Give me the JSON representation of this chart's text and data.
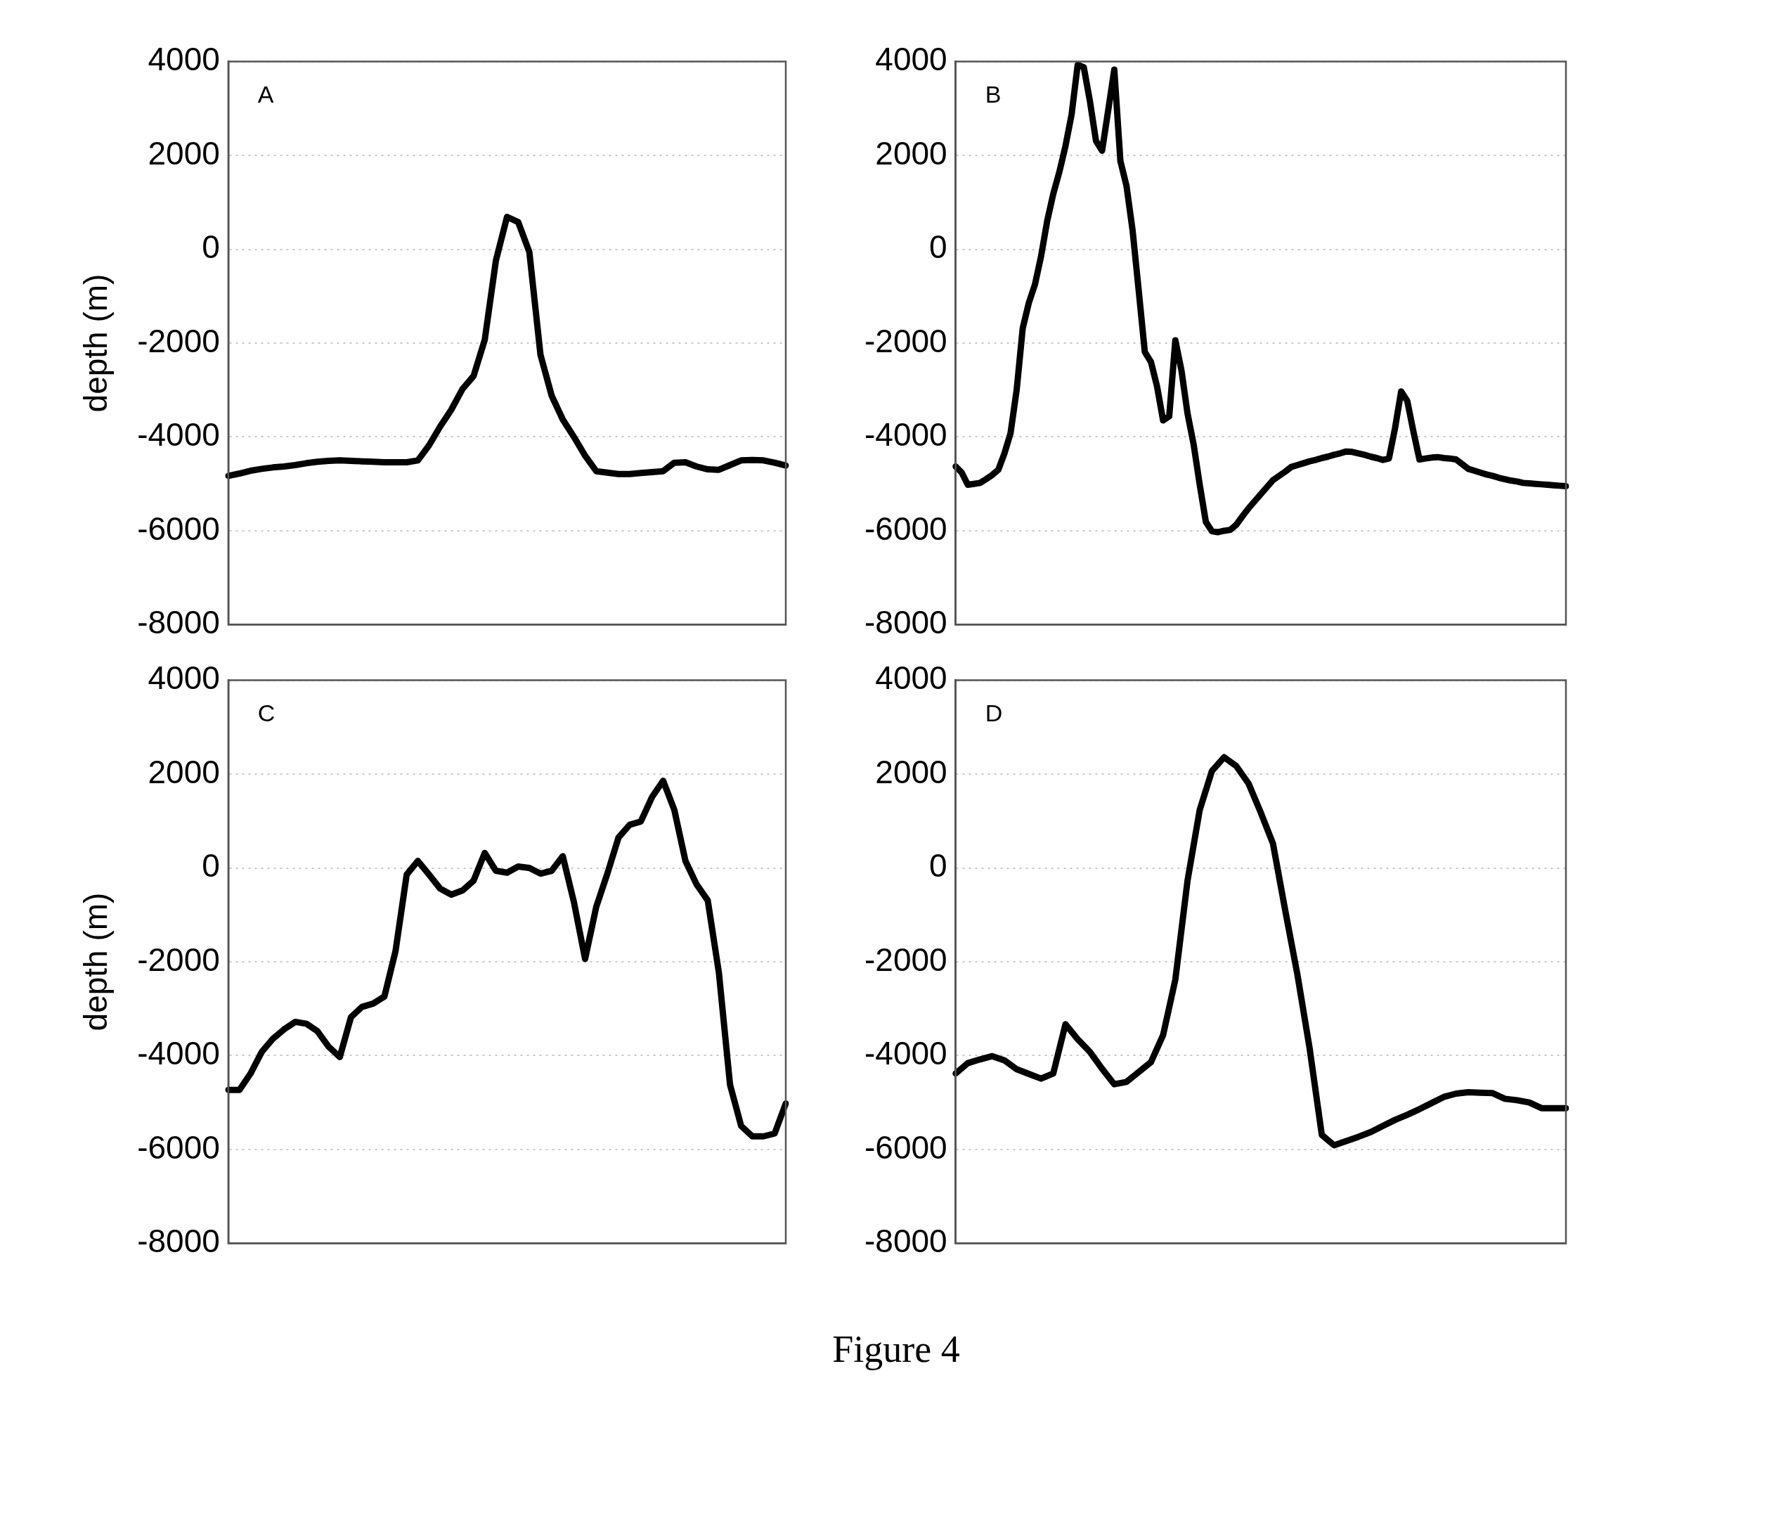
{
  "chart_data": [
    {
      "type": "line",
      "title": "A",
      "ylabel": "depth (m)",
      "categories": [
        null,
        null,
        null,
        null,
        null,
        null,
        null,
        null,
        null,
        null,
        null,
        null,
        null,
        null,
        null,
        null,
        null,
        null,
        null,
        null,
        null,
        null,
        null,
        null,
        null,
        null,
        null,
        null,
        null,
        null,
        null,
        null,
        null,
        null,
        null,
        null,
        null,
        null,
        null,
        null,
        null,
        null,
        null,
        null,
        null,
        null,
        null,
        null,
        null,
        null,
        null
      ],
      "ylim": [
        -8000,
        4000
      ],
      "yticks": [
        -8000,
        -6000,
        -4000,
        -2000,
        0,
        2000,
        4000
      ],
      "grid": "y",
      "tick_labels": "y",
      "marker": "none",
      "line_style": "solid",
      "series": [
        {
          "color": "#000000",
          "values": [
            -4830,
            -4780,
            -4720,
            -4680,
            -4650,
            -4630,
            -4600,
            -4560,
            -4530,
            -4510,
            -4500,
            -4510,
            -4520,
            -4530,
            -4540,
            -4540,
            -4540,
            -4500,
            -4180,
            -3780,
            -3420,
            -2980,
            -2700,
            -1930,
            -240,
            690,
            580,
            -60,
            -2250,
            -3120,
            -3630,
            -4000,
            -4400,
            -4730,
            -4760,
            -4790,
            -4790,
            -4770,
            -4750,
            -4730,
            -4550,
            -4540,
            -4630,
            -4690,
            -4700,
            -4600,
            -4500,
            -4490,
            -4500,
            -4550,
            -4610
          ]
        }
      ]
    },
    {
      "type": "line",
      "title": "B",
      "categories": [
        null,
        null,
        null,
        null,
        null,
        null,
        null,
        null,
        null,
        null,
        null,
        null,
        null,
        null,
        null,
        null,
        null,
        null,
        null,
        null,
        null,
        null,
        null,
        null,
        null,
        null,
        null,
        null,
        null,
        null,
        null,
        null,
        null,
        null,
        null,
        null,
        null,
        null,
        null,
        null,
        null,
        null,
        null,
        null,
        null,
        null,
        null,
        null,
        null,
        null,
        null,
        null,
        null,
        null,
        null,
        null,
        null,
        null,
        null,
        null,
        null,
        null,
        null,
        null,
        null,
        null,
        null,
        null,
        null,
        null,
        null,
        null,
        null,
        null,
        null,
        null,
        null,
        null,
        null,
        null,
        null,
        null,
        null,
        null,
        null,
        null,
        null,
        null,
        null,
        null,
        null,
        null,
        null,
        null,
        null,
        null,
        null,
        null,
        null,
        null,
        null
      ],
      "ylim": [
        -8000,
        4000
      ],
      "yticks": [
        -8000,
        -6000,
        -4000,
        -2000,
        0,
        2000,
        4000
      ],
      "grid": "y",
      "tick_labels": "y",
      "marker": "none",
      "line_style": "solid",
      "series": [
        {
          "color": "#000000",
          "values": [
            -4630,
            -4760,
            -5020,
            -5000,
            -4980,
            -4900,
            -4810,
            -4700,
            -4350,
            -3920,
            -3000,
            -1680,
            -1140,
            -750,
            -150,
            600,
            1180,
            1650,
            2200,
            2870,
            3930,
            3880,
            3160,
            2310,
            2100,
            2960,
            3830,
            1880,
            1350,
            400,
            -880,
            -2190,
            -2400,
            -2920,
            -3650,
            -3560,
            -1940,
            -2580,
            -3500,
            -4160,
            -5020,
            -5810,
            -6010,
            -6030,
            -6000,
            -5980,
            -5870,
            -5690,
            -5520,
            -5370,
            -5220,
            -5070,
            -4920,
            -4830,
            -4740,
            -4640,
            -4600,
            -4560,
            -4520,
            -4490,
            -4450,
            -4420,
            -4380,
            -4350,
            -4310,
            -4320,
            -4350,
            -4380,
            -4420,
            -4450,
            -4490,
            -4460,
            -3810,
            -3030,
            -3230,
            -3880,
            -4480,
            -4460,
            -4440,
            -4430,
            -4450,
            -4460,
            -4480,
            -4580,
            -4680,
            -4720,
            -4760,
            -4800,
            -4830,
            -4870,
            -4900,
            -4930,
            -4950,
            -4980,
            -4990,
            -5000,
            -5010,
            -5020,
            -5030,
            -5040,
            -5050
          ]
        }
      ]
    },
    {
      "type": "line",
      "title": "C",
      "ylabel": "depth (m)",
      "categories": [
        null,
        null,
        null,
        null,
        null,
        null,
        null,
        null,
        null,
        null,
        null,
        null,
        null,
        null,
        null,
        null,
        null,
        null,
        null,
        null,
        null,
        null,
        null,
        null,
        null,
        null,
        null,
        null,
        null,
        null,
        null,
        null,
        null,
        null,
        null,
        null,
        null,
        null,
        null,
        null,
        null,
        null,
        null,
        null,
        null,
        null,
        null,
        null,
        null,
        null,
        null
      ],
      "ylim": [
        -8000,
        4000
      ],
      "yticks": [
        -8000,
        -6000,
        -4000,
        -2000,
        0,
        2000,
        4000
      ],
      "grid": "y",
      "tick_labels": "y",
      "marker": "none",
      "line_style": "solid",
      "series": [
        {
          "color": "#000000",
          "values": [
            -4730,
            -4730,
            -4380,
            -3920,
            -3640,
            -3440,
            -3280,
            -3320,
            -3480,
            -3810,
            -4030,
            -3180,
            -2960,
            -2890,
            -2740,
            -1770,
            -140,
            150,
            -140,
            -440,
            -570,
            -480,
            -270,
            320,
            -60,
            -100,
            30,
            0,
            -120,
            -60,
            250,
            -730,
            -1940,
            -830,
            -120,
            650,
            920,
            990,
            1510,
            1860,
            1240,
            150,
            -350,
            -690,
            -2230,
            -4620,
            -5500,
            -5720,
            -5720,
            -5660,
            -5020
          ]
        }
      ]
    },
    {
      "type": "line",
      "title": "D",
      "categories": [
        null,
        null,
        null,
        null,
        null,
        null,
        null,
        null,
        null,
        null,
        null,
        null,
        null,
        null,
        null,
        null,
        null,
        null,
        null,
        null,
        null,
        null,
        null,
        null,
        null,
        null,
        null,
        null,
        null,
        null,
        null,
        null,
        null,
        null,
        null,
        null,
        null,
        null,
        null,
        null,
        null,
        null,
        null,
        null,
        null,
        null,
        null,
        null,
        null,
        null,
        null
      ],
      "ylim": [
        -8000,
        4000
      ],
      "yticks": [
        -8000,
        -6000,
        -4000,
        -2000,
        0,
        2000,
        4000
      ],
      "grid": "y",
      "tick_labels": "y",
      "marker": "none",
      "line_style": "solid",
      "annotations": [
        "Figure 4"
      ],
      "series": [
        {
          "color": "#000000",
          "values": [
            -4380,
            -4160,
            -4080,
            -4010,
            -4100,
            -4290,
            -4390,
            -4490,
            -4380,
            -3330,
            -3650,
            -3920,
            -4280,
            -4610,
            -4560,
            -4350,
            -4140,
            -3560,
            -2380,
            -270,
            1240,
            2070,
            2360,
            2170,
            1800,
            1180,
            520,
            -900,
            -2270,
            -3840,
            -5690,
            -5910,
            -5820,
            -5730,
            -5630,
            -5500,
            -5370,
            -5260,
            -5140,
            -5010,
            -4880,
            -4810,
            -4780,
            -4790,
            -4800,
            -4920,
            -4950,
            -5000,
            -5120,
            -5120,
            -5120
          ]
        }
      ]
    }
  ]
}
